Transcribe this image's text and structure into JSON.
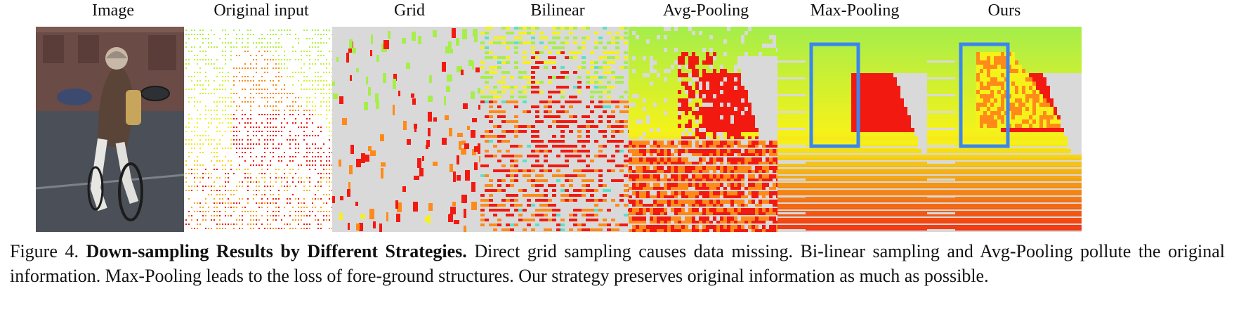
{
  "figure": {
    "panels": [
      {
        "key": "image",
        "label": "Image"
      },
      {
        "key": "original",
        "label": "Original input"
      },
      {
        "key": "grid",
        "label": "Grid"
      },
      {
        "key": "bilinear",
        "label": "Bilinear"
      },
      {
        "key": "avgpool",
        "label": "Avg-Pooling"
      },
      {
        "key": "maxpool",
        "label": "Max-Pooling"
      },
      {
        "key": "ours",
        "label": "Ours"
      }
    ],
    "caption": {
      "label": "Figure 4.",
      "title": "Down-sampling Results by Different Strategies.",
      "text": "Direct grid sampling causes data missing. Bi-linear sampling and Avg-Pooling pollute the original information. Max-Pooling leads to the loss of fore-ground structures. Our strategy preserves original information as much as possible."
    },
    "colors": {
      "background_gray": "#d9d9d9",
      "near_green": "#a6ee4a",
      "yellow": "#f5f21a",
      "orange": "#ff8a1a",
      "red": "#f21a10",
      "box_blue": "#3a86f0"
    }
  }
}
